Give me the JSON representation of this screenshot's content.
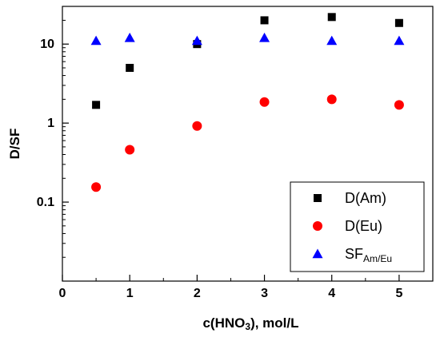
{
  "chart_data": {
    "type": "scatter",
    "title": "",
    "xlabel": {
      "main": "c(HNO",
      "sub": "3",
      "rest": "), mol/L"
    },
    "ylabel": "D/SF",
    "xlim": [
      0,
      5.5
    ],
    "ylim": [
      0.01,
      30
    ],
    "y_scale": "log",
    "grid": false,
    "legend_position": "lower-right",
    "x_ticks": [
      {
        "value": 0,
        "label": "0"
      },
      {
        "value": 1,
        "label": "1"
      },
      {
        "value": 2,
        "label": "2"
      },
      {
        "value": 3,
        "label": "3"
      },
      {
        "value": 4,
        "label": "4"
      },
      {
        "value": 5,
        "label": "5"
      }
    ],
    "y_ticks": [
      {
        "value": 0.1,
        "label": "0.1"
      },
      {
        "value": 1,
        "label": "1"
      },
      {
        "value": 10,
        "label": "10"
      }
    ],
    "series": [
      {
        "key": "am",
        "name": "D(Am)",
        "name_sub": "",
        "marker": "square",
        "color": "#000000",
        "x": [
          0.5,
          1,
          2,
          3,
          4,
          5
        ],
        "y": [
          1.7,
          5.0,
          10.0,
          20.0,
          22.0,
          18.5
        ]
      },
      {
        "key": "eu",
        "name": "D(Eu)",
        "name_sub": "",
        "marker": "circle",
        "color": "#ff0000",
        "x": [
          0.5,
          1,
          2,
          3,
          4,
          5
        ],
        "y": [
          0.155,
          0.46,
          0.92,
          1.85,
          2.0,
          1.7
        ]
      },
      {
        "key": "sf",
        "name": "SF",
        "name_sub": "Am/Eu",
        "marker": "triangle",
        "color": "#0000ff",
        "x": [
          0.5,
          1,
          2,
          3,
          4,
          5
        ],
        "y": [
          11.0,
          12.0,
          11.0,
          12.0,
          11.0,
          11.0
        ]
      }
    ]
  }
}
